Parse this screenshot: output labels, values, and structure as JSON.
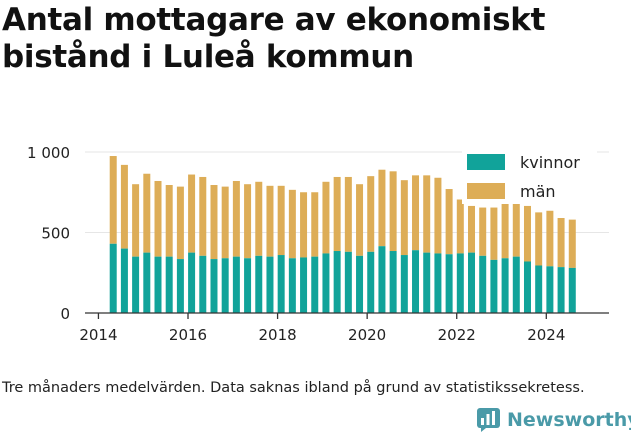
{
  "title": "Antal mottagare av ekonomiskt bistånd i Luleå kommun",
  "note": "Tre månaders medelvärden. Data saknas ibland på grund av statistikssekretess.",
  "brand": {
    "name": "Newsworthy",
    "icon": "newsworthy-logo-icon"
  },
  "colors": {
    "kvinnor": "#11a39a",
    "man": "#ddad57",
    "axis": "#333333",
    "grid": "#e6e6e6"
  },
  "chart_data": {
    "type": "bar",
    "stacked": true,
    "xlim": [
      2013.7,
      2025.4
    ],
    "ylim": [
      0,
      1000
    ],
    "yticks": [
      0,
      500,
      1000
    ],
    "ytick_labels": [
      "0",
      "500",
      "1 000"
    ],
    "xticks": [
      2014,
      2016,
      2018,
      2020,
      2022,
      2024
    ],
    "xtick_labels": [
      "2014",
      "2016",
      "2018",
      "2020",
      "2022",
      "2024"
    ],
    "legend_position": "top-right",
    "x": [
      2014.33,
      2014.58,
      2014.83,
      2015.08,
      2015.33,
      2015.58,
      2015.83,
      2016.08,
      2016.33,
      2016.58,
      2016.83,
      2017.08,
      2017.33,
      2017.58,
      2017.83,
      2018.08,
      2018.33,
      2018.58,
      2018.83,
      2019.08,
      2019.33,
      2019.58,
      2019.83,
      2020.08,
      2020.33,
      2020.58,
      2020.83,
      2021.08,
      2021.33,
      2021.58,
      2021.83,
      2022.08,
      2022.33,
      2022.58,
      2022.83,
      2023.08,
      2023.33,
      2023.58,
      2023.83,
      2024.08,
      2024.33,
      2024.58
    ],
    "series": [
      {
        "name": "kvinnor",
        "values": [
          430,
          400,
          350,
          375,
          350,
          350,
          335,
          375,
          355,
          335,
          340,
          350,
          340,
          355,
          350,
          360,
          340,
          345,
          350,
          370,
          385,
          380,
          355,
          380,
          415,
          385,
          360,
          390,
          375,
          370,
          365,
          370,
          375,
          355,
          330,
          340,
          350,
          320,
          295,
          290,
          285,
          280
        ]
      },
      {
        "name": "män",
        "values": [
          545,
          520,
          450,
          490,
          470,
          445,
          450,
          485,
          490,
          460,
          445,
          470,
          460,
          460,
          440,
          430,
          425,
          405,
          400,
          445,
          460,
          465,
          445,
          470,
          475,
          495,
          465,
          465,
          480,
          470,
          405,
          335,
          290,
          300,
          325,
          350,
          380,
          345,
          330,
          345,
          305,
          300
        ]
      }
    ]
  }
}
